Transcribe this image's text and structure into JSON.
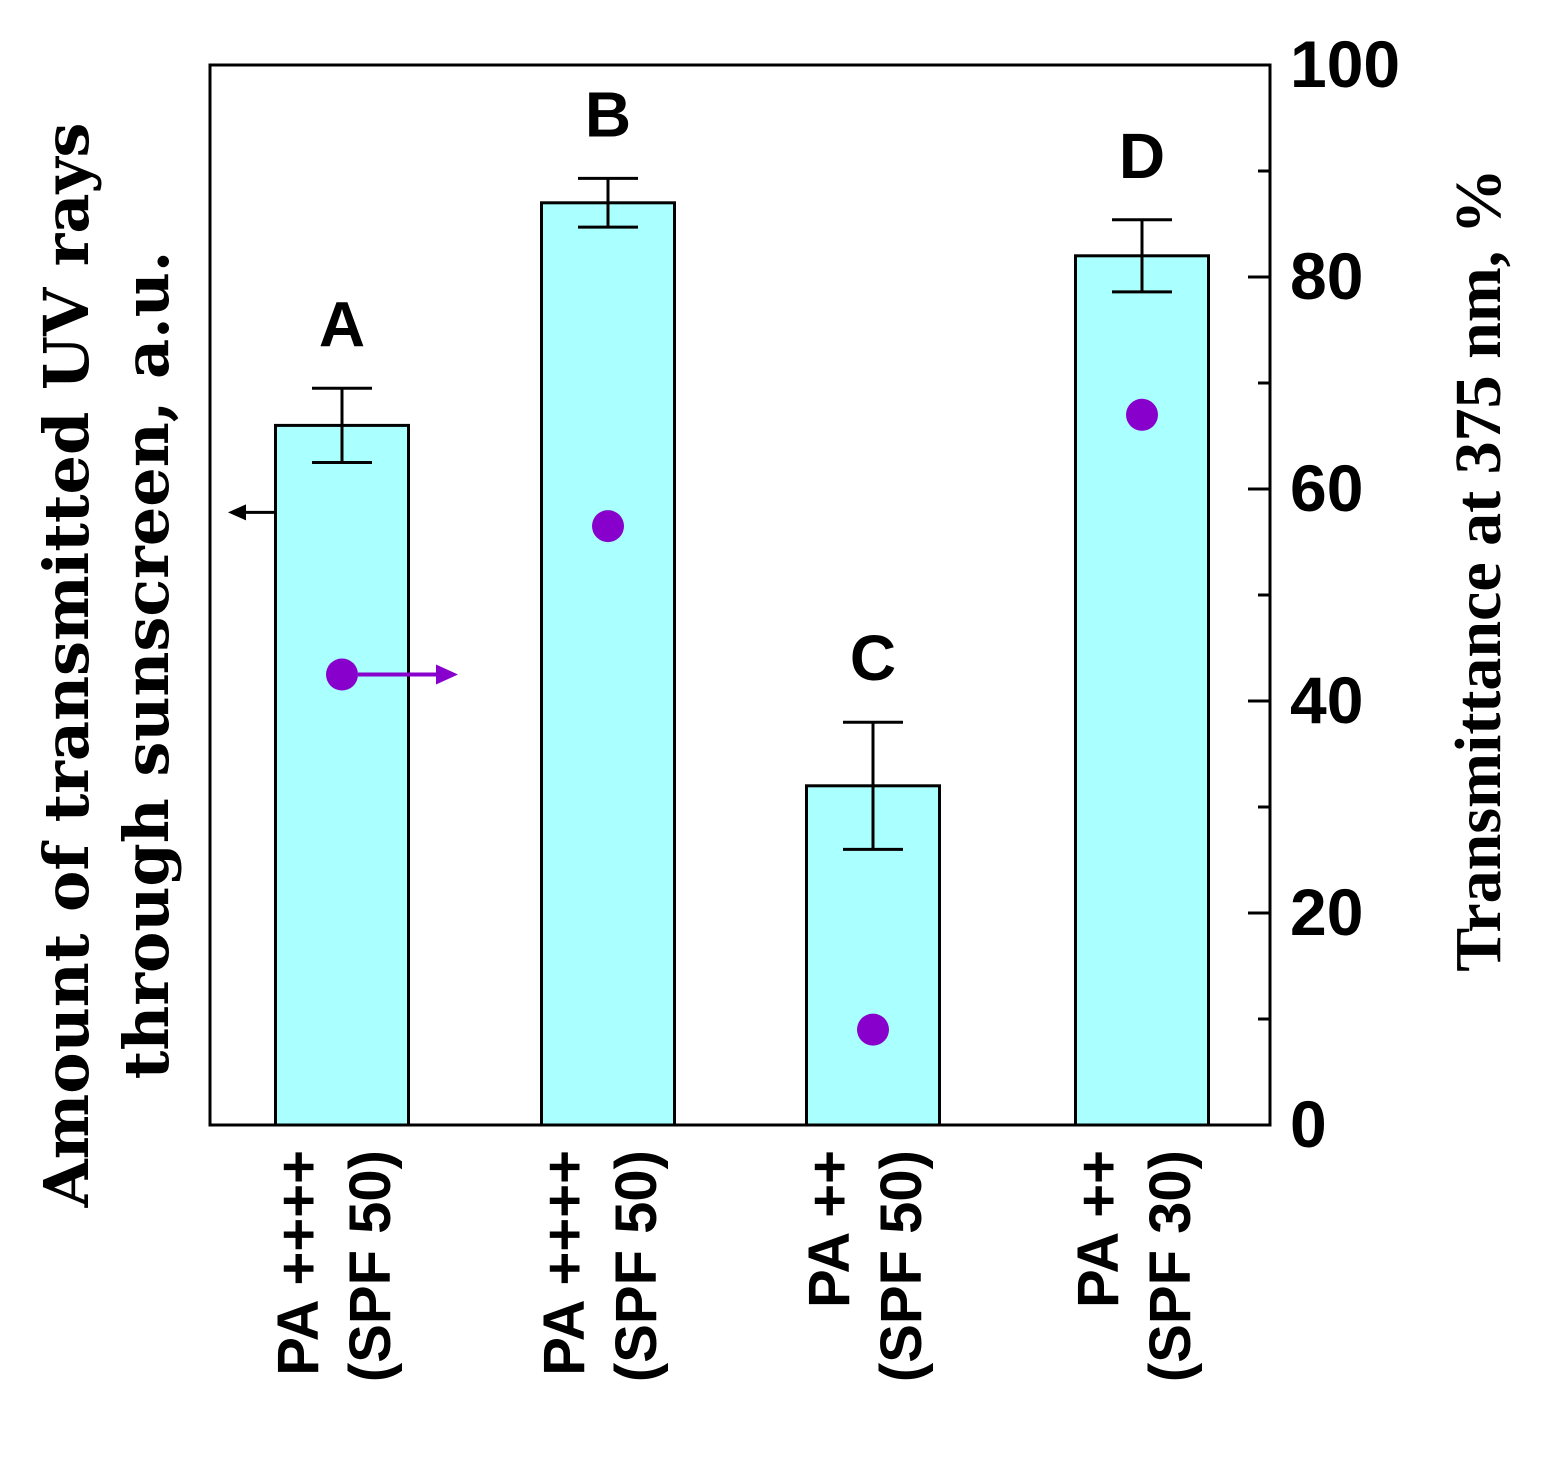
{
  "chart_data": {
    "type": "bar",
    "categories": [
      [
        "PA ++++",
        "(SPF 50)"
      ],
      [
        "PA ++++",
        "(SPF 50)"
      ],
      [
        "PA ++",
        "(SPF 50)"
      ],
      [
        "PA ++",
        "(SPF 30)"
      ]
    ],
    "bar_letters": [
      "A",
      "B",
      "C",
      "D"
    ],
    "series": [
      {
        "name": "Amount of transmitted UV rays through sunscreen",
        "axis": "left",
        "values": [
          66,
          87,
          32,
          82
        ],
        "errors": [
          3.5,
          2.3,
          6,
          3.4
        ],
        "color": "#aaffff",
        "arrow_direction": "left"
      },
      {
        "name": "Transmittance at 375 nm",
        "axis": "right",
        "values": [
          42.5,
          56.5,
          9,
          67
        ],
        "color": "#8800cc",
        "arrow_direction": "right"
      }
    ],
    "ylabel_left": [
      "Amount of transmitted UV rays",
      "through sunscreen, a.u."
    ],
    "ylabel_right": "Transmittance at 375 nm, %",
    "ylim_left": [
      0,
      100
    ],
    "ylim_right": [
      0,
      100
    ],
    "right_tick_labels": [
      "0",
      "20",
      "40",
      "60",
      "80",
      "100"
    ],
    "right_tick_values": [
      0,
      20,
      40,
      60,
      80,
      100
    ],
    "right_minor_tick_values": [
      10,
      30,
      50,
      70,
      90
    ],
    "left_tick_labels": [],
    "grid": false
  }
}
